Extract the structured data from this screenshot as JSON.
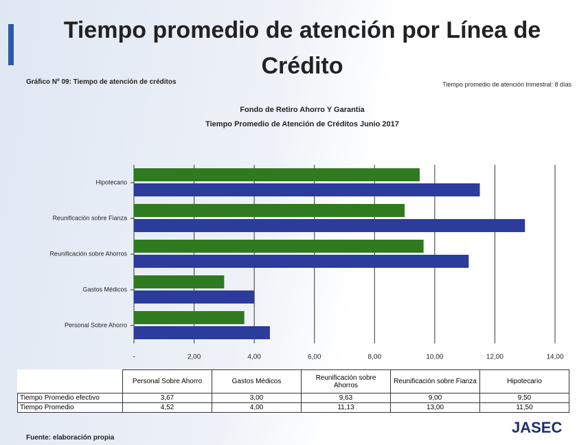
{
  "slide": {
    "title": "Tiempo promedio de atención por Línea de Crédito",
    "caption": "Gráfico Nº 09: Tiempo de atención de créditos",
    "note": "Tiempo promedio de atención trimestral: 8 días",
    "source": "Fuente: elaboración propia",
    "logo": "JASEC"
  },
  "chart_data": {
    "type": "hbar",
    "title": "Fondo de Retiro Ahorro Y Garantía",
    "subtitle": "Tiempo Promedio de Atención de Créditos Junio 2017",
    "categories": [
      "Personal Sobre Ahorro",
      "Gastos Médicos",
      "Reunificación sobre Ahorros",
      "Reunificación sobre Fianza",
      "Hipotecario"
    ],
    "series": [
      {
        "name": "Tiempo Promedio efectivo",
        "color": "#2f7a1f",
        "values": [
          3.67,
          3.0,
          9.63,
          9.0,
          9.5
        ],
        "value_labels": [
          "3,67",
          "3,00",
          "9,63",
          "9,00",
          "9,50"
        ]
      },
      {
        "name": "Tiempo Promedio",
        "color": "#2b3c9c",
        "values": [
          4.52,
          4.0,
          11.13,
          13.0,
          11.5
        ],
        "value_labels": [
          "4,52",
          "4,00",
          "11,13",
          "13,00",
          "11,50"
        ]
      }
    ],
    "xlim": [
      0,
      14
    ],
    "xticks": [
      {
        "value": 0,
        "label": "-"
      },
      {
        "value": 2,
        "label": "2,00"
      },
      {
        "value": 4,
        "label": "4,00"
      },
      {
        "value": 6,
        "label": "6,00"
      },
      {
        "value": 8,
        "label": "8,00"
      },
      {
        "value": 10,
        "label": "10,00"
      },
      {
        "value": 12,
        "label": "12,00"
      },
      {
        "value": 14,
        "label": "14,00"
      }
    ],
    "grid": true
  }
}
